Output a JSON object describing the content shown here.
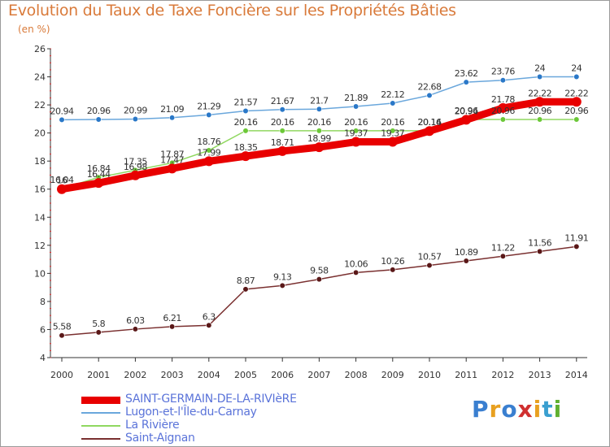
{
  "title": "Evolution du Taux de Taxe Foncière sur les Propriétés Bâties",
  "unit_label": "(en %)",
  "logo": {
    "text": "Proxiti",
    "colors": [
      "#3a7fd0",
      "#e8a020",
      "#3a7fd0",
      "#d03030",
      "#e8a020",
      "#3a9fd0",
      "#60b030"
    ]
  },
  "chart_data": {
    "type": "line",
    "x": [
      "2000",
      "2001",
      "2002",
      "2003",
      "2004",
      "2005",
      "2006",
      "2007",
      "2008",
      "2009",
      "2010",
      "2011",
      "2012",
      "2013",
      "2014"
    ],
    "ylim": [
      4,
      26
    ],
    "yticks": [
      4,
      6,
      8,
      10,
      12,
      14,
      16,
      18,
      20,
      22,
      24,
      26
    ],
    "grid": false,
    "legend_position": "bottom-left",
    "series": [
      {
        "name": "SAINT-GERMAIN-DE-LA-RIVIèRE",
        "color": "#e80000",
        "width": 9,
        "values": [
          16,
          16.44,
          16.98,
          17.47,
          17.99,
          18.35,
          18.71,
          18.99,
          19.37,
          19.37,
          20.14,
          20.94,
          21.78,
          22.22,
          22.22
        ],
        "labels": [
          "16",
          "16.44",
          "16.98",
          "17.47",
          "17.99",
          "18.35",
          "18.71",
          "18.99",
          "19.37",
          "19.37",
          "20.14",
          "20.94",
          "21.78",
          "22.22",
          "22.22"
        ]
      },
      {
        "name": "Lugon-et-l'Île-du-Carnay",
        "color": "#6aa7dc",
        "width": 1.5,
        "values": [
          20.94,
          20.96,
          20.99,
          21.09,
          21.29,
          21.57,
          21.67,
          21.7,
          21.89,
          22.12,
          22.68,
          23.62,
          23.76,
          24,
          24
        ],
        "labels": [
          "20.94",
          "20.96",
          "20.99",
          "21.09",
          "21.29",
          "21.57",
          "21.67",
          "21.7",
          "21.89",
          "22.12",
          "22.68",
          "23.62",
          "23.76",
          "24",
          "24"
        ]
      },
      {
        "name": "La Rivière",
        "color": "#90d860",
        "width": 1.5,
        "values": [
          16.04,
          16.84,
          17.35,
          17.87,
          18.76,
          20.16,
          20.16,
          20.16,
          20.16,
          20.16,
          20.16,
          20.96,
          20.96,
          20.96,
          20.96
        ],
        "labels": [
          "16.04",
          "16.84",
          "17.35",
          "17.87",
          "18.76",
          "20.16",
          "20.16",
          "20.16",
          "20.16",
          "20.16",
          "20.16",
          "20.96",
          "20.96",
          "20.96",
          "20.96"
        ]
      },
      {
        "name": "Saint-Aignan",
        "color": "#7a3030",
        "width": 1.5,
        "values": [
          5.58,
          5.8,
          6.03,
          6.21,
          6.3,
          8.87,
          9.13,
          9.58,
          10.06,
          10.26,
          10.57,
          10.89,
          11.22,
          11.56,
          11.91
        ],
        "labels": [
          "5.58",
          "5.8",
          "6.03",
          "6.21",
          "6.3",
          "8.87",
          "9.13",
          "9.58",
          "10.06",
          "10.26",
          "10.57",
          "10.89",
          "11.22",
          "11.56",
          "11.91"
        ]
      }
    ]
  }
}
